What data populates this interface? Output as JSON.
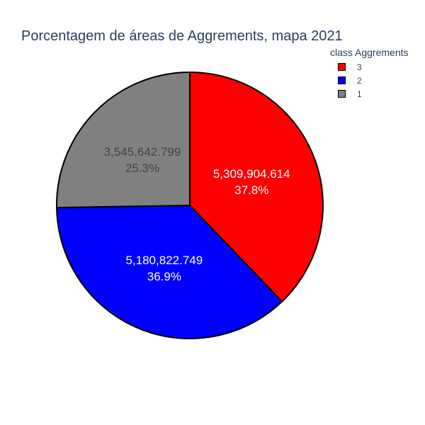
{
  "chart_data": {
    "type": "pie",
    "title": "Porcentagem de áreas de Aggrements, mapa 2021",
    "legend_title": "class Aggrements",
    "legend_position": "top-right",
    "slices": [
      {
        "label": "3",
        "value": 5309904.614,
        "value_text": "5,309,904.614",
        "percent_text": "37.8%",
        "color": "#ff0000",
        "text_color": "#ffffff"
      },
      {
        "label": "2",
        "value": 5180822.749,
        "value_text": "5,180,822.749",
        "percent_text": "36.9%",
        "color": "#0000ff",
        "text_color": "#ffffff"
      },
      {
        "label": "1",
        "value": 3545642.799,
        "value_text": "3,545,642.799",
        "percent_text": "25.3%",
        "color": "#808080",
        "text_color": "#444444"
      }
    ],
    "legend_order": [
      "3",
      "2",
      "1"
    ]
  }
}
